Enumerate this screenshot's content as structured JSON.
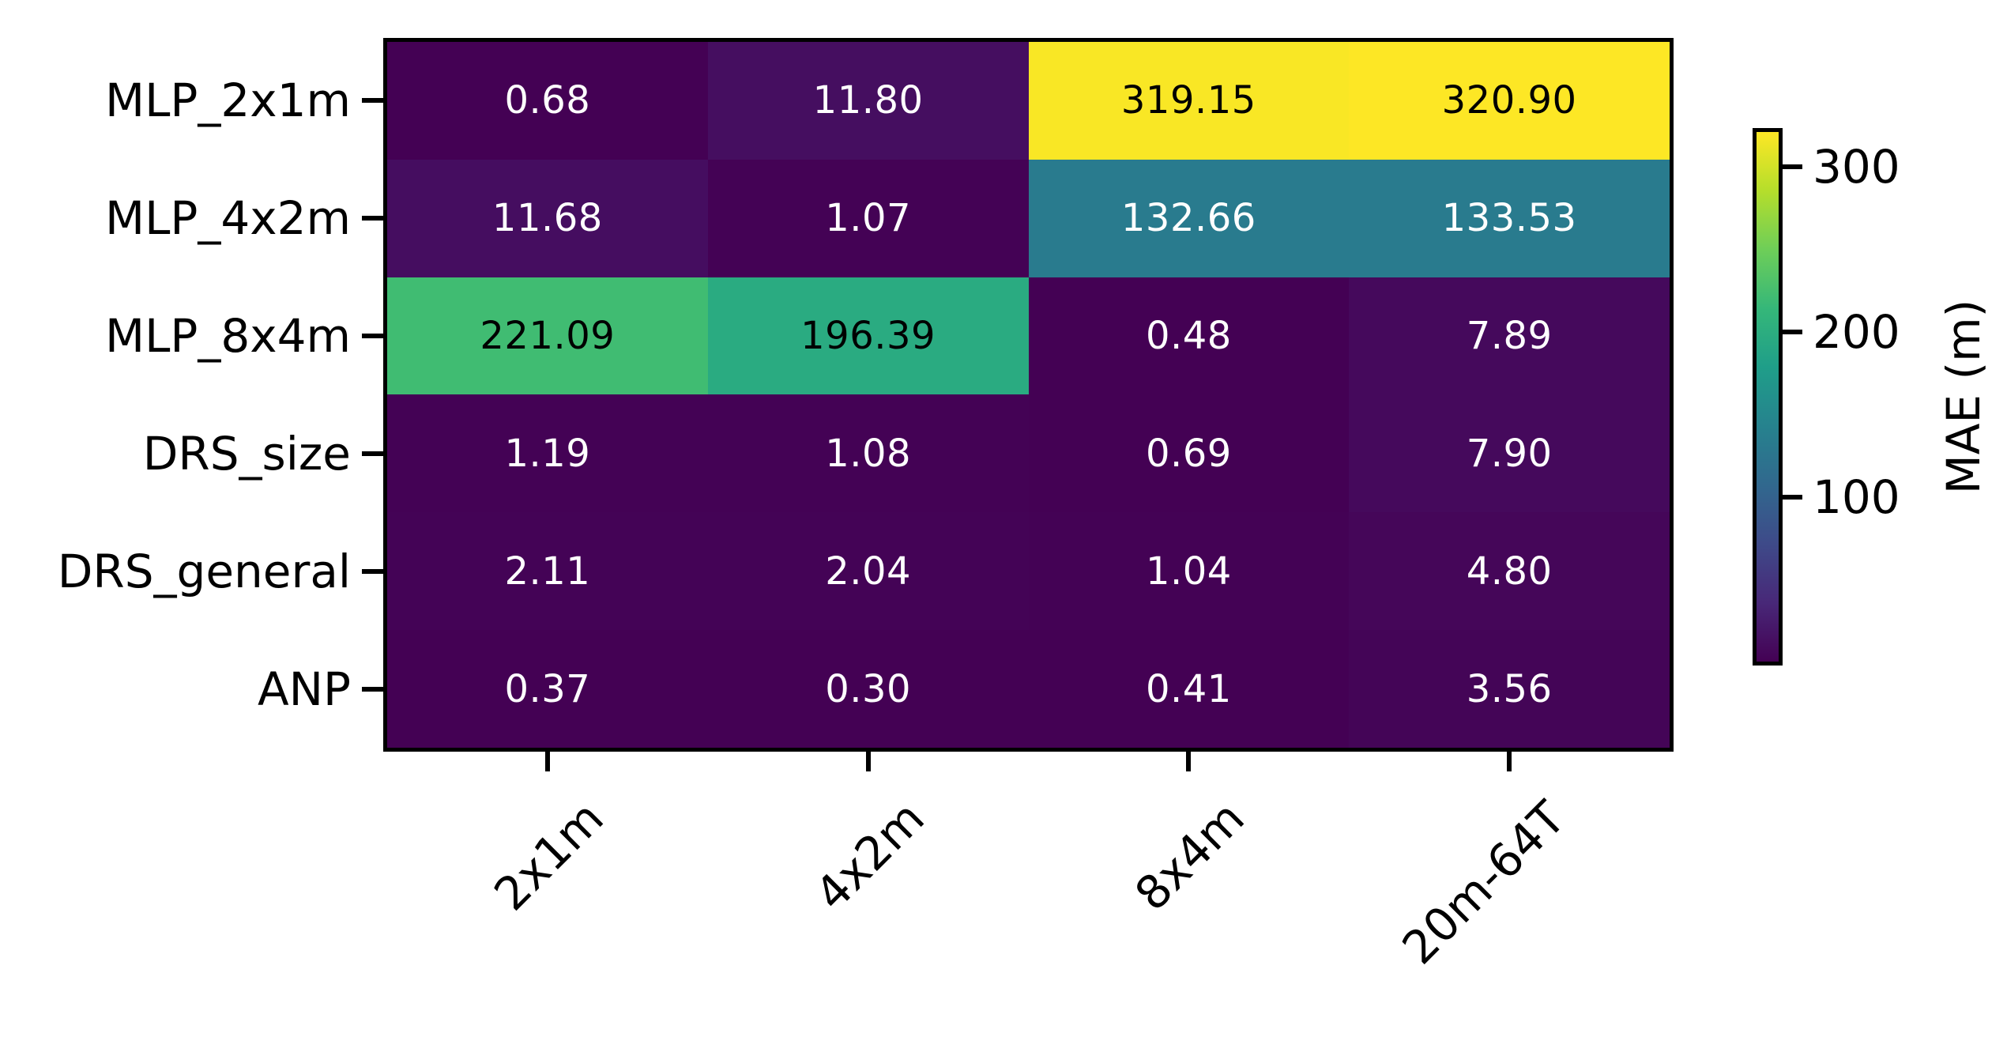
{
  "chart_data": {
    "type": "heatmap",
    "rows": [
      "MLP_2x1m",
      "MLP_4x2m",
      "MLP_8x4m",
      "DRS_size",
      "DRS_general",
      "ANP"
    ],
    "columns": [
      "2x1m",
      "4x2m",
      "8x4m",
      "20m-64T"
    ],
    "values": [
      [
        0.68,
        11.8,
        319.15,
        320.9
      ],
      [
        11.68,
        1.07,
        132.66,
        133.53
      ],
      [
        221.09,
        196.39,
        0.48,
        7.89
      ],
      [
        1.19,
        1.08,
        0.69,
        7.9
      ],
      [
        2.11,
        2.04,
        1.04,
        4.8
      ],
      [
        0.37,
        0.3,
        0.41,
        3.56
      ]
    ],
    "value_decimals": 2,
    "colormap": "viridis",
    "colorbar": {
      "label": "MAE (m)",
      "vmin": 0.3,
      "vmax": 320.9,
      "ticks": [
        100,
        200,
        300
      ],
      "tick_labels": [
        "100",
        "200",
        "300"
      ],
      "position": "right"
    },
    "colors": {
      "background": "#ffffff",
      "axis": "#000000",
      "annotation_on_dark": "#ffffff",
      "annotation_on_light": "#000000"
    },
    "grid": false,
    "xlabel": "",
    "ylabel": "",
    "title": ""
  }
}
